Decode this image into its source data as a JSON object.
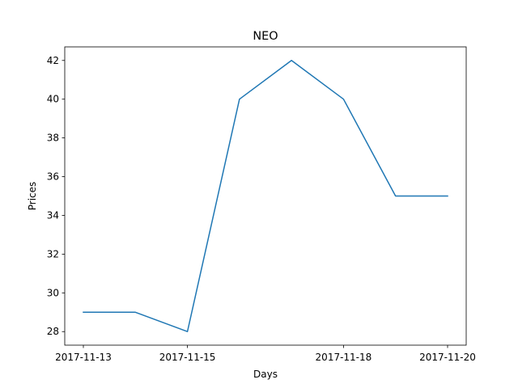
{
  "chart_data": {
    "type": "line",
    "title": "NEO",
    "xlabel": "Days",
    "ylabel": "Prices",
    "x": [
      "2017-11-13",
      "2017-11-14",
      "2017-11-15",
      "2017-11-16",
      "2017-11-17",
      "2017-11-18",
      "2017-11-19",
      "2017-11-20"
    ],
    "series": [
      {
        "values": [
          29,
          29,
          28,
          40,
          42,
          40,
          35,
          35
        ],
        "color": "#1f77b4"
      }
    ],
    "xticks": [
      "2017-11-13",
      "2017-11-15",
      "2017-11-18",
      "2017-11-20"
    ],
    "yticks": [
      28,
      30,
      32,
      34,
      36,
      38,
      40,
      42
    ],
    "ylim": [
      27.3,
      42.7
    ],
    "grid": false,
    "legend": "none"
  }
}
